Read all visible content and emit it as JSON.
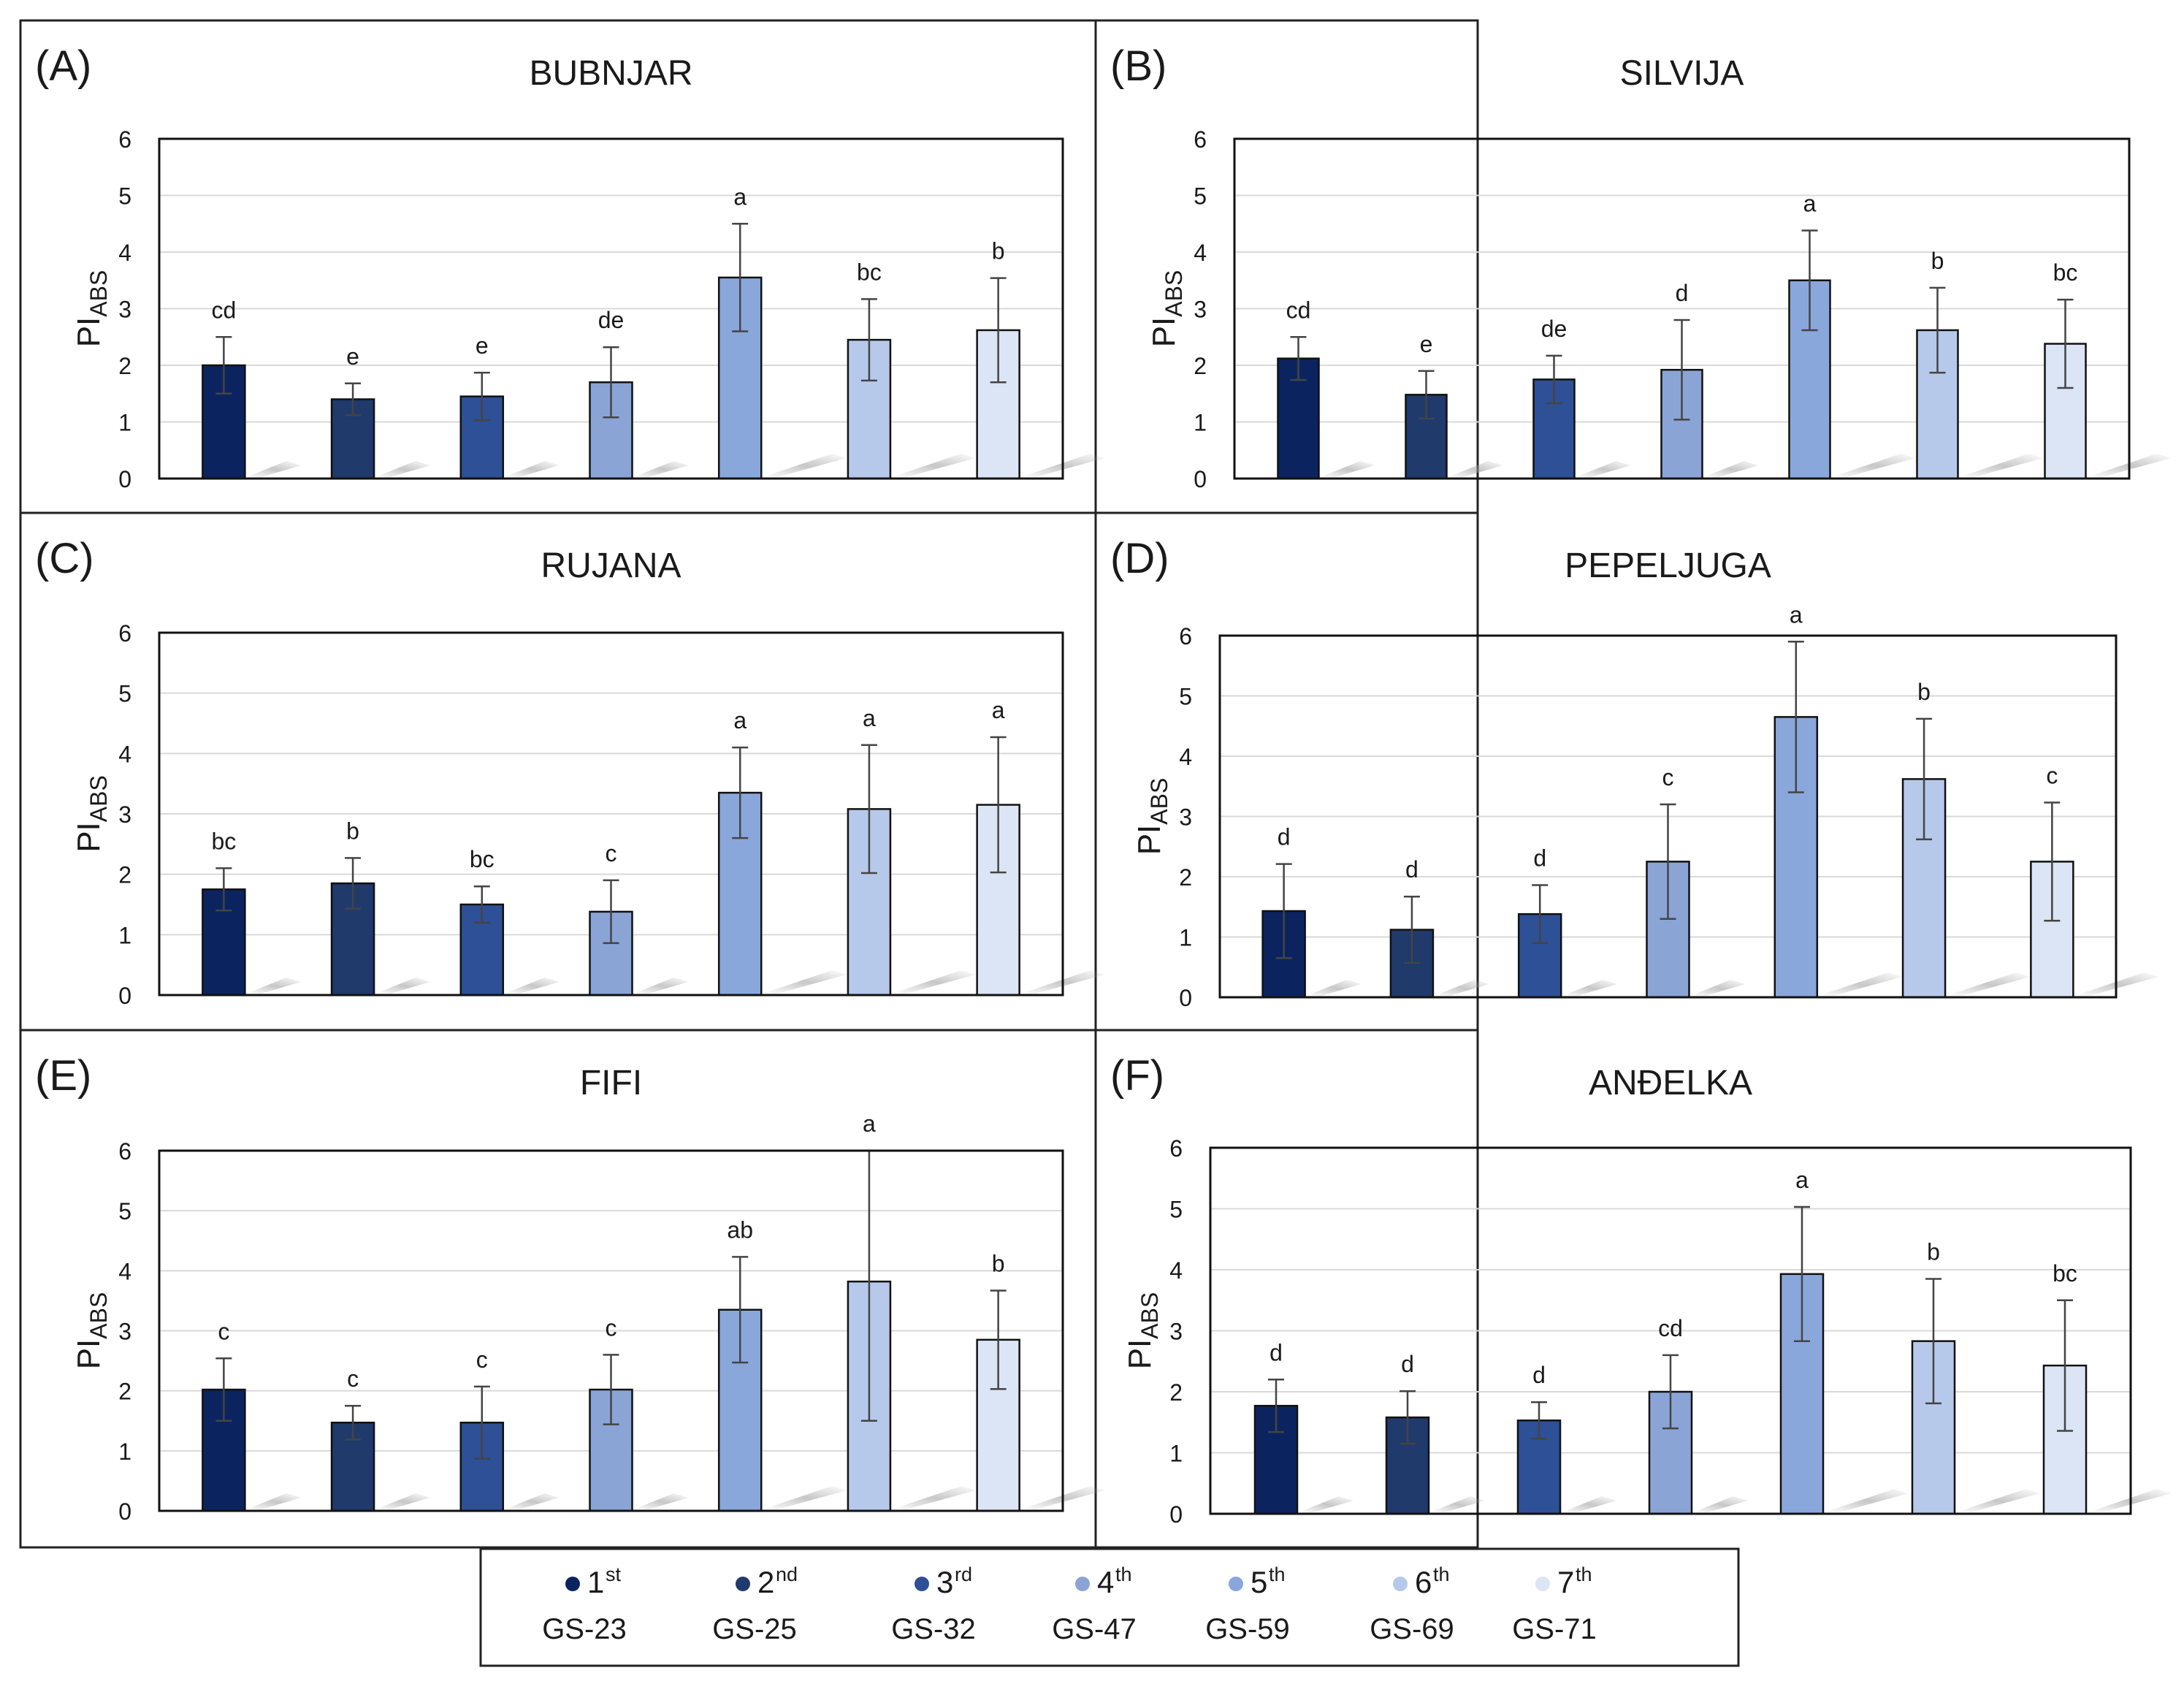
{
  "colors": [
    "#0b2460",
    "#1f3a6b",
    "#2e5096",
    "#8aa4d6",
    "#8aa7dc",
    "#b6c9ea",
    "#dce5f5"
  ],
  "legend": {
    "items": [
      {
        "stage": "1",
        "sup": "st",
        "code": "GS-23"
      },
      {
        "stage": "2",
        "sup": "nd",
        "code": "GS-25"
      },
      {
        "stage": "3",
        "sup": "rd",
        "code": "GS-32"
      },
      {
        "stage": "4",
        "sup": "th",
        "code": "GS-47"
      },
      {
        "stage": "5",
        "sup": "th",
        "code": "GS-59"
      },
      {
        "stage": "6",
        "sup": "th",
        "code": "GS-69"
      },
      {
        "stage": "7",
        "sup": "th",
        "code": "GS-71"
      }
    ]
  },
  "chart_data": [
    {
      "type": "bar",
      "panel": "(A)",
      "title": "BUBNJAR",
      "ylabel": "PI",
      "ylabel_sub": "ABS",
      "ylim": [
        0,
        6
      ],
      "yticks": [
        "0",
        "1",
        "2",
        "3",
        "4",
        "5",
        "6"
      ],
      "values": [
        2.0,
        1.4,
        1.45,
        1.7,
        3.55,
        2.45,
        2.62
      ],
      "errors": [
        0.5,
        0.28,
        0.42,
        0.62,
        0.95,
        0.72,
        0.92
      ],
      "letters": [
        "cd",
        "e",
        "e",
        "de",
        "a",
        "bc",
        "b"
      ]
    },
    {
      "type": "bar",
      "panel": "(B)",
      "title": "SILVIJA",
      "ylabel": "PI",
      "ylabel_sub": "ABS",
      "ylim": [
        0,
        6
      ],
      "yticks": [
        "0",
        "1",
        "2",
        "3",
        "4",
        "5",
        "6"
      ],
      "values": [
        2.12,
        1.48,
        1.75,
        1.92,
        3.5,
        2.62,
        2.38
      ],
      "errors": [
        0.38,
        0.42,
        0.42,
        0.88,
        0.88,
        0.75,
        0.78
      ],
      "letters": [
        "cd",
        "e",
        "de",
        "d",
        "a",
        "b",
        "bc"
      ]
    },
    {
      "type": "bar",
      "panel": "(C)",
      "title": "RUJANA",
      "ylabel": "PI",
      "ylabel_sub": "ABS",
      "ylim": [
        0,
        6
      ],
      "yticks": [
        "0",
        "1",
        "2",
        "3",
        "4",
        "5",
        "6"
      ],
      "values": [
        1.75,
        1.85,
        1.5,
        1.38,
        3.35,
        3.08,
        3.15
      ],
      "errors": [
        0.35,
        0.42,
        0.3,
        0.52,
        0.75,
        1.06,
        1.12
      ],
      "letters": [
        "bc",
        "b",
        "bc",
        "c",
        "a",
        "a",
        "a"
      ]
    },
    {
      "type": "bar",
      "panel": "(D)",
      "title": "PEPELJUGA",
      "ylabel": "PI",
      "ylabel_sub": "ABS",
      "ylim": [
        0,
        6
      ],
      "yticks": [
        "0",
        "1",
        "2",
        "3",
        "4",
        "5",
        "6"
      ],
      "values": [
        1.43,
        1.12,
        1.38,
        2.25,
        4.65,
        3.62,
        2.25
      ],
      "errors": [
        0.78,
        0.55,
        0.48,
        0.95,
        1.25,
        1.0,
        0.98
      ],
      "letters": [
        "d",
        "d",
        "d",
        "c",
        "a",
        "b",
        "c"
      ]
    },
    {
      "type": "bar",
      "panel": "(E)",
      "title": "FIFI",
      "ylabel": "PI",
      "ylabel_sub": "ABS",
      "ylim": [
        0,
        6
      ],
      "yticks": [
        "0",
        "1",
        "2",
        "3",
        "4",
        "5",
        "6"
      ],
      "values": [
        2.02,
        1.47,
        1.47,
        2.02,
        3.35,
        3.82,
        2.85
      ],
      "errors": [
        0.52,
        0.28,
        0.6,
        0.58,
        0.88,
        2.32,
        0.82
      ],
      "letters": [
        "c",
        "c",
        "c",
        "c",
        "ab",
        "a",
        "b"
      ]
    },
    {
      "type": "bar",
      "panel": "(F)",
      "title": "ANĐELKA",
      "ylabel": "PI",
      "ylabel_sub": "ABS",
      "ylim": [
        0,
        6
      ],
      "yticks": [
        "0",
        "1",
        "2",
        "3",
        "4",
        "5",
        "6"
      ],
      "values": [
        1.77,
        1.58,
        1.53,
        2.0,
        3.93,
        2.83,
        2.43
      ],
      "errors": [
        0.43,
        0.43,
        0.3,
        0.6,
        1.1,
        1.02,
        1.07
      ],
      "letters": [
        "d",
        "d",
        "d",
        "cd",
        "a",
        "b",
        "bc"
      ]
    }
  ]
}
